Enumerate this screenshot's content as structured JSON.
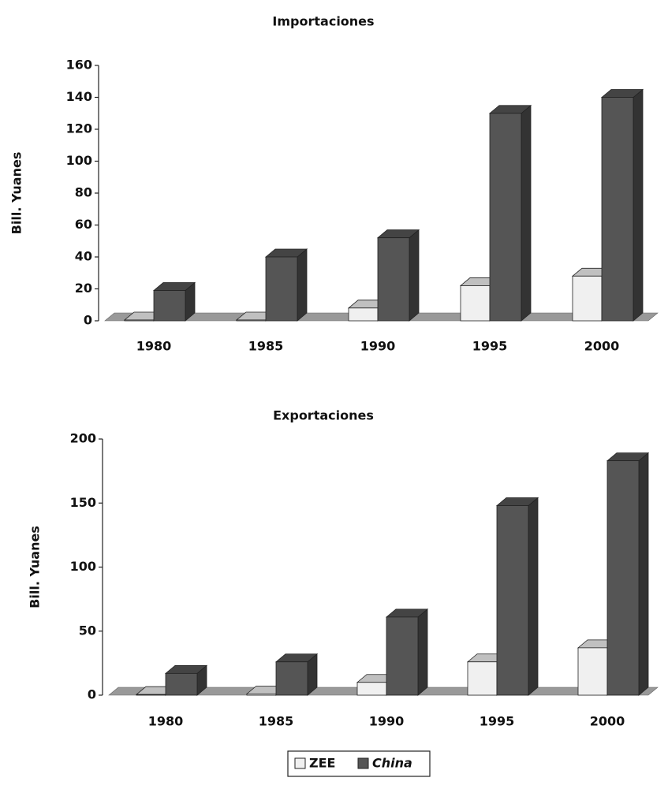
{
  "chart_data": [
    {
      "type": "bar3d",
      "title": "Importaciones",
      "y_label": "Bill. Yuanes",
      "categories": [
        "1980",
        "1985",
        "1990",
        "1995",
        "2000"
      ],
      "series": [
        {
          "name": "ZEE",
          "color": "#f0f0f0",
          "values": [
            0.5,
            0.5,
            8,
            22,
            28
          ]
        },
        {
          "name": "China",
          "color": "#555555",
          "values": [
            19,
            40,
            52,
            130,
            140
          ]
        }
      ],
      "ylim": [
        0,
        160
      ],
      "yticks": [
        0,
        20,
        40,
        60,
        80,
        100,
        120,
        140,
        160
      ]
    },
    {
      "type": "bar3d",
      "title": "Exportaciones",
      "y_label": "Bill. Yuanes",
      "categories": [
        "1980",
        "1985",
        "1990",
        "1995",
        "2000"
      ],
      "series": [
        {
          "color": "#f0f0f0",
          "values": [
            0.5,
            1,
            10,
            26,
            37
          ]
        },
        {
          "color": "#555555",
          "values": [
            17,
            26,
            61,
            148,
            183
          ]
        }
      ],
      "ylim": [
        0,
        200
      ],
      "yticks": [
        0,
        50,
        100,
        150,
        200
      ]
    }
  ]
}
